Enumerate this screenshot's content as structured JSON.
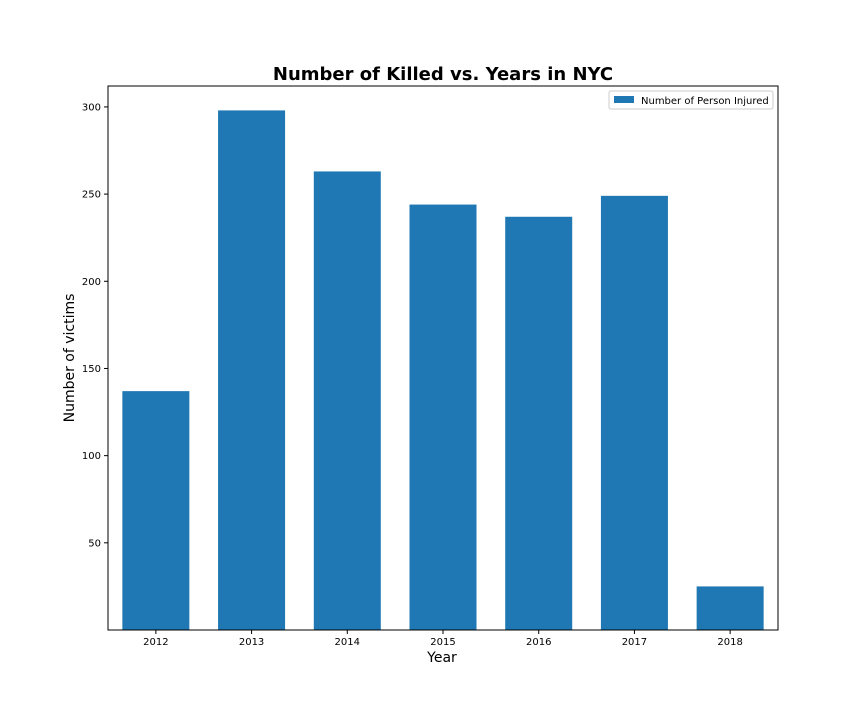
{
  "chart_data": {
    "type": "bar",
    "title": "Number of Killed vs. Years in NYC",
    "xlabel": "Year",
    "ylabel": "Number of victims",
    "categories": [
      "2012",
      "2013",
      "2014",
      "2015",
      "2016",
      "2017",
      "2018"
    ],
    "series": [
      {
        "name": "Number of Person Injured",
        "color": "#1f77b4",
        "values": [
          137,
          298,
          263,
          244,
          237,
          249,
          25
        ]
      }
    ],
    "ylim": [
      0,
      312
    ],
    "yticks": [
      50,
      100,
      150,
      200,
      250,
      300
    ],
    "grid": false,
    "legend_position": "top-right"
  }
}
